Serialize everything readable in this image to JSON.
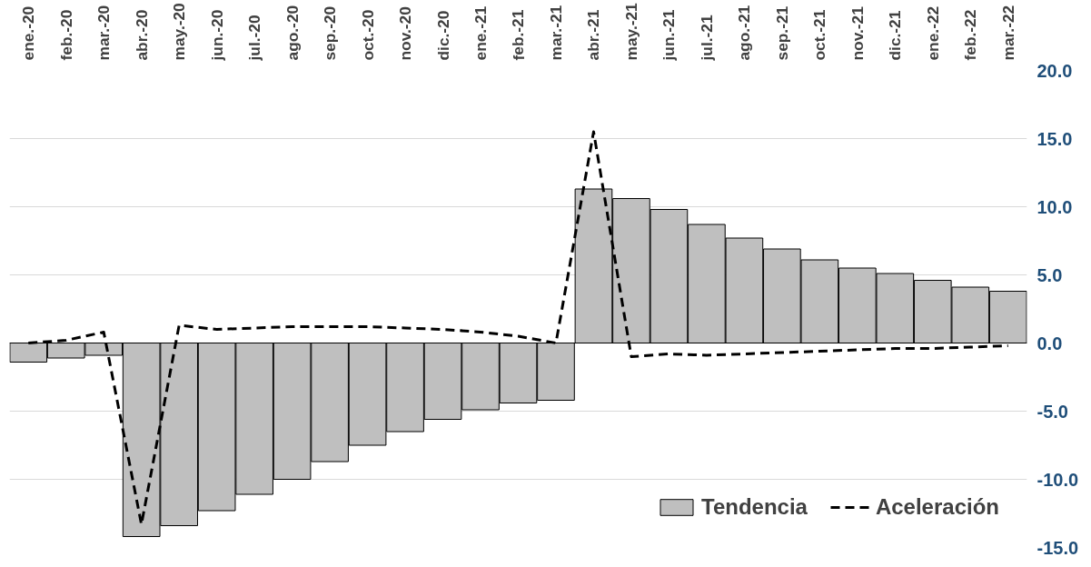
{
  "chart_data": {
    "type": "bar",
    "categories": [
      "ene.-20",
      "feb.-20",
      "mar.-20",
      "abr.-20",
      "may.-20",
      "jun.-20",
      "jul.-20",
      "ago.-20",
      "sep.-20",
      "oct.-20",
      "nov.-20",
      "dic.-20",
      "ene.-21",
      "feb.-21",
      "mar.-21",
      "abr.-21",
      "may.-21",
      "jun.-21",
      "jul.-21",
      "ago.-21",
      "sep.-21",
      "oct.-21",
      "nov.-21",
      "dic.-21",
      "ene.-22",
      "feb.-22",
      "mar.-22"
    ],
    "series": [
      {
        "name": "Tendencia",
        "color": "#bfbfbf",
        "values": [
          -1.4,
          -1.1,
          -0.9,
          -14.2,
          -13.4,
          -12.3,
          -11.1,
          -10.0,
          -8.7,
          -7.5,
          -6.5,
          -5.6,
          -4.9,
          -4.4,
          -4.2,
          11.3,
          10.6,
          9.8,
          8.7,
          7.7,
          6.9,
          6.1,
          5.5,
          5.1,
          4.6,
          4.1,
          3.8
        ]
      },
      {
        "name": "Aceleración",
        "type": "line",
        "color": "#000000",
        "line_style": "dashed",
        "values": [
          0.0,
          0.2,
          0.8,
          -13.3,
          1.3,
          1.0,
          1.1,
          1.2,
          1.2,
          1.2,
          1.1,
          1.0,
          0.8,
          0.5,
          0.0,
          15.5,
          -1.0,
          -0.8,
          -0.9,
          -0.8,
          -0.7,
          -0.6,
          -0.5,
          -0.4,
          -0.4,
          -0.3,
          -0.2
        ]
      }
    ],
    "ylim": [
      -15,
      20
    ],
    "yticks": [
      {
        "value": -15,
        "label": "-15.0"
      },
      {
        "value": -10,
        "label": "-10.0"
      },
      {
        "value": -5,
        "label": "-5.0"
      },
      {
        "value": 0,
        "label": "0.0"
      },
      {
        "value": 5,
        "label": "5.0"
      },
      {
        "value": 10,
        "label": "10.0"
      },
      {
        "value": 15,
        "label": "15.0"
      },
      {
        "value": 20,
        "label": "20.0"
      }
    ],
    "grid": "y",
    "legend": "bottom right"
  }
}
